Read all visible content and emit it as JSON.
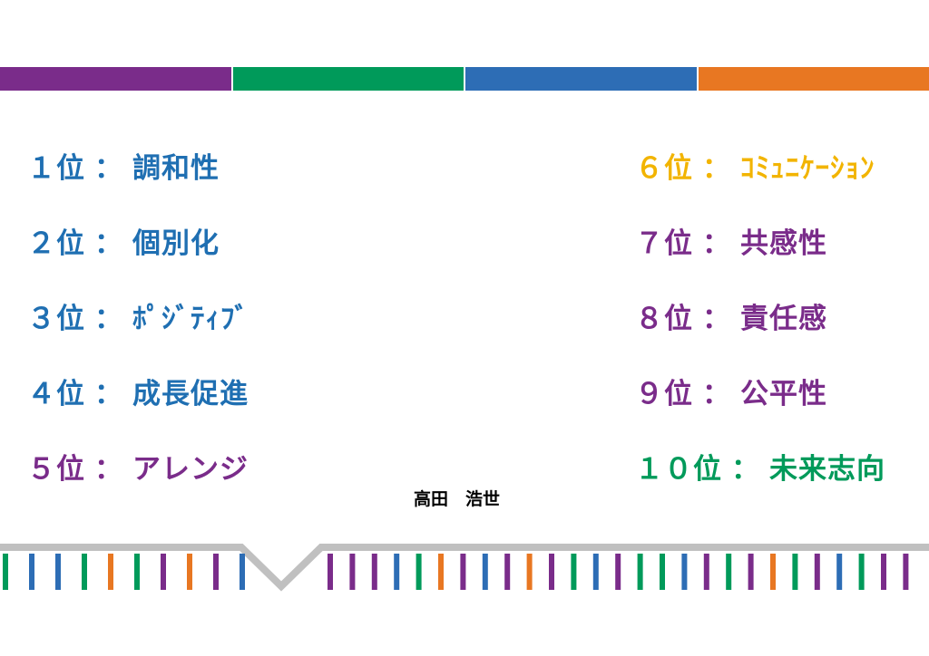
{
  "colors": {
    "purple": "#7a2c8a",
    "green": "#009a5a",
    "blue": "#2d6db5",
    "orange": "#e87722",
    "yellow": "#f2b400",
    "rank_blue": "#1f6fb2",
    "gray": "#c0c0c0"
  },
  "top_bar": [
    "purple",
    "green",
    "blue",
    "orange"
  ],
  "sep": "：",
  "left_ranks": [
    {
      "rank": "１位",
      "name": "調和性",
      "color": "rank_blue"
    },
    {
      "rank": "２位",
      "name": "個別化",
      "color": "rank_blue"
    },
    {
      "rank": "３位",
      "name": "ﾎﾟｼﾞﾃｨﾌﾞ",
      "color": "rank_blue"
    },
    {
      "rank": "４位",
      "name": "成長促進",
      "color": "rank_blue"
    },
    {
      "rank": "５位",
      "name": "アレンジ",
      "color": "purple"
    }
  ],
  "right_ranks": [
    {
      "rank": "６位",
      "name": "ｺﾐｭﾆｹｰｼｮﾝ",
      "color": "yellow"
    },
    {
      "rank": "７位",
      "name": "共感性",
      "color": "purple"
    },
    {
      "rank": "８位",
      "name": "責任感",
      "color": "purple"
    },
    {
      "rank": "９位",
      "name": "公平性",
      "color": "purple"
    },
    {
      "rank": "１０位",
      "name": "未来志向",
      "color": "green"
    }
  ],
  "author": "高田　浩世",
  "stripe_pattern": [
    "green",
    "blue",
    "blue",
    "green",
    "orange",
    "green",
    "purple",
    "orange",
    "purple",
    "blue"
  ],
  "stripe_pattern_right": [
    "purple",
    "purple",
    "purple",
    "blue",
    "green",
    "orange",
    "purple",
    "blue",
    "purple",
    "orange",
    "purple",
    "green",
    "blue",
    "purple",
    "green",
    "green",
    "blue",
    "purple",
    "green",
    "purple",
    "orange",
    "green",
    "purple",
    "blue",
    "green",
    "purple",
    "purple"
  ]
}
